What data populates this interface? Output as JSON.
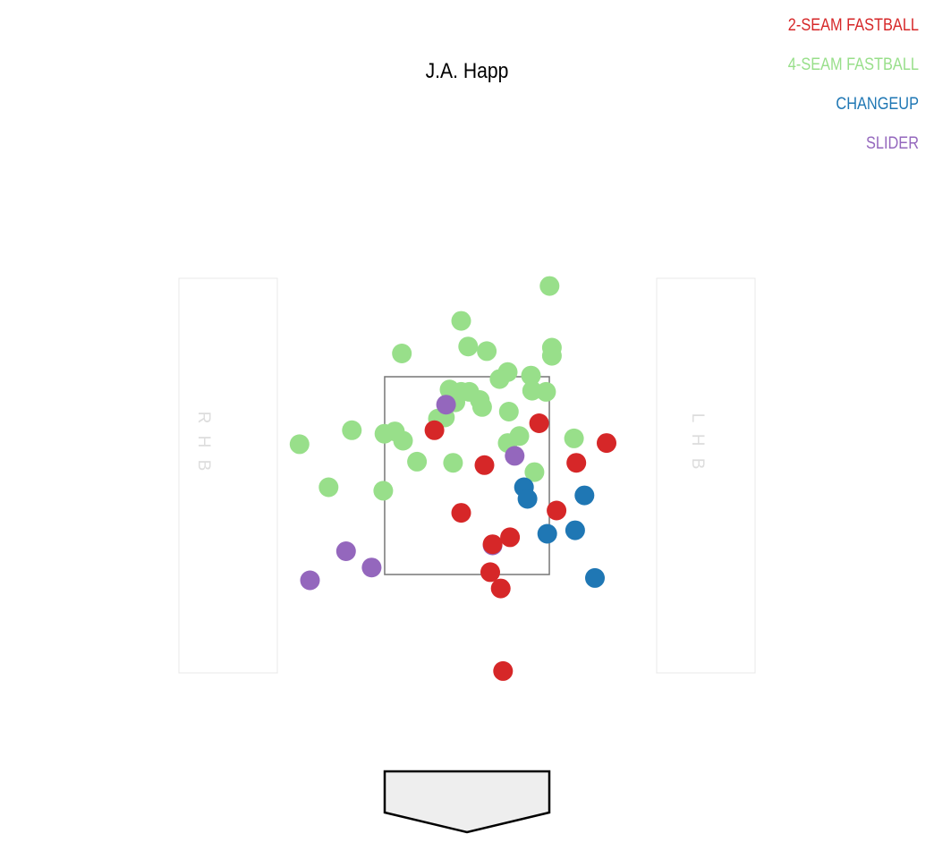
{
  "chart_data": {
    "type": "scatter",
    "title": "J.A. Happ",
    "units": "feet",
    "strike_zone": {
      "x": [
        -0.708,
        0.708
      ],
      "z": [
        1.5,
        3.2
      ]
    },
    "batter_boxes": {
      "left": "R H B",
      "right": "L H B"
    },
    "legend_position": "top-right",
    "series": [
      {
        "name": "4-SEAM FASTBALL",
        "color": "#98df8a",
        "points": [
          [
            0.71,
            3.98
          ],
          [
            -0.05,
            3.68
          ],
          [
            0.01,
            3.46
          ],
          [
            0.17,
            3.42
          ],
          [
            0.73,
            3.45
          ],
          [
            0.73,
            3.38
          ],
          [
            -0.56,
            3.4
          ],
          [
            0.35,
            3.24
          ],
          [
            0.28,
            3.18
          ],
          [
            0.55,
            3.21
          ],
          [
            0.56,
            3.08
          ],
          [
            0.68,
            3.07
          ],
          [
            -0.15,
            3.09
          ],
          [
            -0.05,
            3.07
          ],
          [
            0.02,
            3.07
          ],
          [
            -0.1,
            2.98
          ],
          [
            0.11,
            3.0
          ],
          [
            0.13,
            2.94
          ],
          [
            0.36,
            2.9
          ],
          [
            -0.25,
            2.84
          ],
          [
            -0.19,
            2.85
          ],
          [
            -0.99,
            2.74
          ],
          [
            -0.71,
            2.71
          ],
          [
            -0.62,
            2.73
          ],
          [
            -0.55,
            2.65
          ],
          [
            -1.44,
            2.62
          ],
          [
            0.45,
            2.69
          ],
          [
            0.35,
            2.63
          ],
          [
            0.92,
            2.67
          ],
          [
            -0.43,
            2.47
          ],
          [
            -0.12,
            2.46
          ],
          [
            0.58,
            2.38
          ],
          [
            -1.19,
            2.25
          ],
          [
            -0.72,
            2.22
          ]
        ]
      },
      {
        "name": "SLIDER",
        "color": "#9467bd",
        "points": [
          [
            -0.18,
            2.96
          ],
          [
            0.41,
            2.52
          ],
          [
            -1.04,
            1.7
          ],
          [
            -0.82,
            1.56
          ],
          [
            -1.35,
            1.45
          ],
          [
            0.22,
            1.75
          ]
        ]
      },
      {
        "name": "CHANGEUP",
        "color": "#1f77b4",
        "points": [
          [
            0.49,
            2.25
          ],
          [
            0.52,
            2.15
          ],
          [
            1.01,
            2.18
          ],
          [
            0.69,
            1.85
          ],
          [
            0.93,
            1.88
          ],
          [
            1.1,
            1.47
          ]
        ]
      },
      {
        "name": "2-SEAM FASTBALL",
        "color": "#d62728",
        "points": [
          [
            -0.28,
            2.74
          ],
          [
            0.62,
            2.8
          ],
          [
            0.15,
            2.44
          ],
          [
            1.2,
            2.63
          ],
          [
            0.94,
            2.46
          ],
          [
            -0.05,
            2.03
          ],
          [
            0.77,
            2.05
          ],
          [
            0.37,
            1.82
          ],
          [
            0.22,
            1.76
          ],
          [
            0.2,
            1.52
          ],
          [
            0.29,
            1.38
          ],
          [
            0.31,
            0.67
          ]
        ]
      }
    ],
    "legend": [
      {
        "label": "2-SEAM FASTBALL",
        "color": "#d62728"
      },
      {
        "label": "4-SEAM FASTBALL",
        "color": "#98df8a"
      },
      {
        "label": "CHANGEUP",
        "color": "#1f77b4"
      },
      {
        "label": "SLIDER",
        "color": "#9467bd"
      }
    ]
  }
}
